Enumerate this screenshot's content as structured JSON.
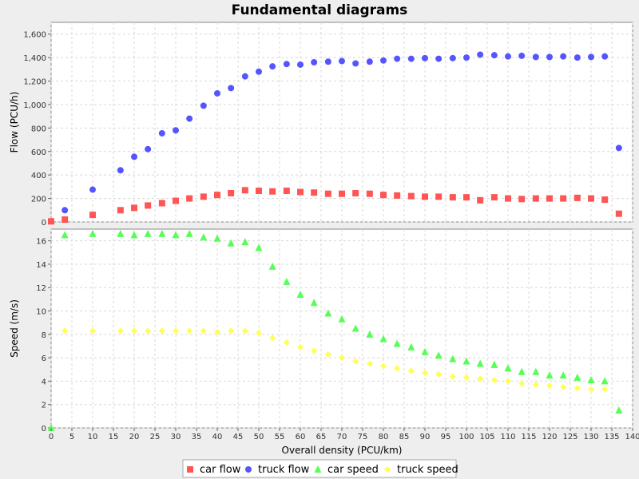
{
  "chart_data": {
    "type": "scatter",
    "title": "Fundamental diagrams",
    "xlabel": "Overall density (PCU/km)",
    "xlim": [
      0,
      140
    ],
    "x_ticks": [
      0,
      5,
      10,
      15,
      20,
      25,
      30,
      35,
      40,
      45,
      50,
      55,
      60,
      65,
      70,
      75,
      80,
      85,
      90,
      95,
      100,
      105,
      110,
      115,
      120,
      125,
      130,
      135,
      140
    ],
    "grid": true,
    "legend_position": "bottom",
    "legend": [
      "car flow",
      "truck flow",
      "car speed",
      "truck speed"
    ],
    "panels": [
      {
        "ylabel": "Flow (PCU/h)",
        "ylim": [
          0,
          1700
        ],
        "y_ticks": [
          0,
          200,
          400,
          600,
          800,
          1000,
          1200,
          1400,
          1600
        ],
        "y_tick_labels": [
          "0",
          "200",
          "400",
          "600",
          "800",
          "1,000",
          "1,200",
          "1,400",
          "1,600"
        ],
        "series": [
          {
            "name": "car flow",
            "marker": "square",
            "color": "#ff5555",
            "x": [
              0,
              3.3,
              10,
              16.7,
              20,
              23.3,
              26.7,
              30,
              33.3,
              36.7,
              40,
              43.3,
              46.7,
              50,
              53.3,
              56.7,
              60,
              63.3,
              66.7,
              70,
              73.3,
              76.7,
              80,
              83.3,
              86.7,
              90,
              93.3,
              96.7,
              100,
              103.3,
              106.7,
              110,
              113.3,
              116.7,
              120,
              123.3,
              126.7,
              130,
              133.3,
              136.7
            ],
            "y": [
              5,
              20,
              60,
              100,
              120,
              140,
              160,
              180,
              200,
              215,
              230,
              245,
              270,
              265,
              260,
              265,
              255,
              250,
              240,
              240,
              245,
              240,
              230,
              225,
              220,
              215,
              215,
              210,
              210,
              185,
              210,
              200,
              195,
              200,
              200,
              200,
              205,
              200,
              190,
              70
            ]
          },
          {
            "name": "truck flow",
            "marker": "circle",
            "color": "#5555ff",
            "x": [
              3.3,
              10,
              16.7,
              20,
              23.3,
              26.7,
              30,
              33.3,
              36.7,
              40,
              43.3,
              46.7,
              50,
              53.3,
              56.7,
              60,
              63.3,
              66.7,
              70,
              73.3,
              76.7,
              80,
              83.3,
              86.7,
              90,
              93.3,
              96.7,
              100,
              103.3,
              106.7,
              110,
              113.3,
              116.7,
              120,
              123.3,
              126.7,
              130,
              133.3,
              136.7
            ],
            "y": [
              100,
              275,
              440,
              555,
              620,
              755,
              780,
              880,
              990,
              1095,
              1140,
              1240,
              1280,
              1325,
              1345,
              1340,
              1360,
              1365,
              1370,
              1350,
              1365,
              1375,
              1390,
              1390,
              1395,
              1390,
              1395,
              1400,
              1425,
              1420,
              1410,
              1415,
              1405,
              1405,
              1410,
              1400,
              1405,
              1410,
              630
            ]
          }
        ]
      },
      {
        "ylabel": "Speed (m/s)",
        "ylim": [
          0,
          17
        ],
        "y_ticks": [
          0,
          2,
          4,
          6,
          8,
          10,
          12,
          14,
          16
        ],
        "y_tick_labels": [
          "0",
          "2",
          "4",
          "6",
          "8",
          "10",
          "12",
          "14",
          "16"
        ],
        "series": [
          {
            "name": "car speed",
            "marker": "triangle",
            "color": "#55ff55",
            "x": [
              0,
              3.3,
              10,
              16.7,
              20,
              23.3,
              26.7,
              30,
              33.3,
              36.7,
              40,
              43.3,
              46.7,
              50,
              53.3,
              56.7,
              60,
              63.3,
              66.7,
              70,
              73.3,
              76.7,
              80,
              83.3,
              86.7,
              90,
              93.3,
              96.7,
              100,
              103.3,
              106.7,
              110,
              113.3,
              116.7,
              120,
              123.3,
              126.7,
              130,
              133.3,
              136.7
            ],
            "y": [
              0,
              16.5,
              16.6,
              16.6,
              16.5,
              16.6,
              16.6,
              16.5,
              16.6,
              16.3,
              16.2,
              15.8,
              15.9,
              15.4,
              13.8,
              12.5,
              11.4,
              10.7,
              9.8,
              9.3,
              8.5,
              8.0,
              7.6,
              7.2,
              6.9,
              6.5,
              6.2,
              5.9,
              5.7,
              5.5,
              5.4,
              5.1,
              4.8,
              4.8,
              4.5,
              4.5,
              4.3,
              4.1,
              4.0,
              1.5
            ]
          },
          {
            "name": "truck speed",
            "marker": "diamond",
            "color": "#ffff55",
            "x": [
              3.3,
              10,
              16.7,
              20,
              23.3,
              26.7,
              30,
              33.3,
              36.7,
              40,
              43.3,
              46.7,
              50,
              53.3,
              56.7,
              60,
              63.3,
              66.7,
              70,
              73.3,
              76.7,
              80,
              83.3,
              86.7,
              90,
              93.3,
              96.7,
              100,
              103.3,
              106.7,
              110,
              113.3,
              116.7,
              120,
              123.3,
              126.7,
              130,
              133.3
            ],
            "y": [
              8.3,
              8.3,
              8.3,
              8.3,
              8.3,
              8.3,
              8.3,
              8.3,
              8.3,
              8.2,
              8.3,
              8.3,
              8.1,
              7.7,
              7.3,
              6.9,
              6.6,
              6.3,
              6.0,
              5.7,
              5.5,
              5.3,
              5.1,
              4.9,
              4.7,
              4.6,
              4.4,
              4.3,
              4.2,
              4.1,
              4.0,
              3.8,
              3.7,
              3.6,
              3.5,
              3.4,
              3.3,
              3.3
            ]
          }
        ]
      }
    ]
  }
}
